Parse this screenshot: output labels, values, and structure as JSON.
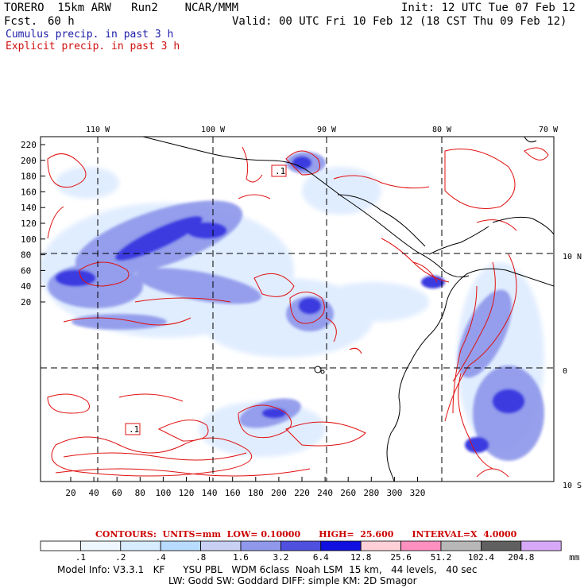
{
  "header": {
    "title_left": "TORERO  15km ARW   Run2    NCAR/MMM",
    "init": "Init: 12 UTC Tue 07 Feb 12",
    "fcst_label": "Fcst.",
    "fcst_value": "60 h",
    "valid": "Valid: 00 UTC Fri 10 Feb 12 (18 CST Thu 09 Feb 12)",
    "legend_cumulus": "Cumulus precip. in past 3 h",
    "legend_explicit": "Explicit precip. in past 3 h"
  },
  "map": {
    "top_lon_labels": [
      "110 W",
      "100 W",
      "90 W",
      "80 W",
      "70 W"
    ],
    "right_lat_labels": [
      "10 N",
      "0",
      "10 S"
    ],
    "left_y_ticks": [
      "220",
      "200",
      "180",
      "160",
      "140",
      "120",
      "100",
      "80",
      "60",
      "40",
      "20"
    ],
    "bottom_x_ticks": [
      "20",
      "40",
      "60",
      "80",
      "100",
      "120",
      "140",
      "160",
      "180",
      "200",
      "220",
      "240",
      "260",
      "280",
      "300",
      "320"
    ],
    "contour_labels": [
      ".1",
      ".1"
    ],
    "colors": {
      "cumulus": "#3030d0",
      "explicit": "#e01010",
      "coast": "#000000"
    }
  },
  "colorbar": {
    "title": "CONTOURS:  UNITS=mm  LOW= 0.10000      HIGH=  25.600      INTERVAL=X  4.0000",
    "levels": [
      ".1",
      ".2",
      ".4",
      ".8",
      "1.6",
      "3.2",
      "6.4",
      "12.8",
      "25.6",
      "51.2",
      "102.4",
      "204.8"
    ],
    "unit": "mm",
    "colors": [
      "#ffffff",
      "#eef6ff",
      "#d8ecff",
      "#b8dcff",
      "#c8d0f4",
      "#9098ec",
      "#5050e0",
      "#1010e0",
      "#ffd0d8",
      "#ff90c0",
      "#b8b8b8",
      "#606060",
      "#d8a8f8"
    ]
  },
  "footer": {
    "line1": "Model Info: V3.3.1   KF      YSU PBL   WDM 6class  Noah LSM  15 km,   44 levels,   40 sec",
    "line2": "LW: Godd SW: Goddard DIFF: simple KM: 2D Smagor"
  }
}
